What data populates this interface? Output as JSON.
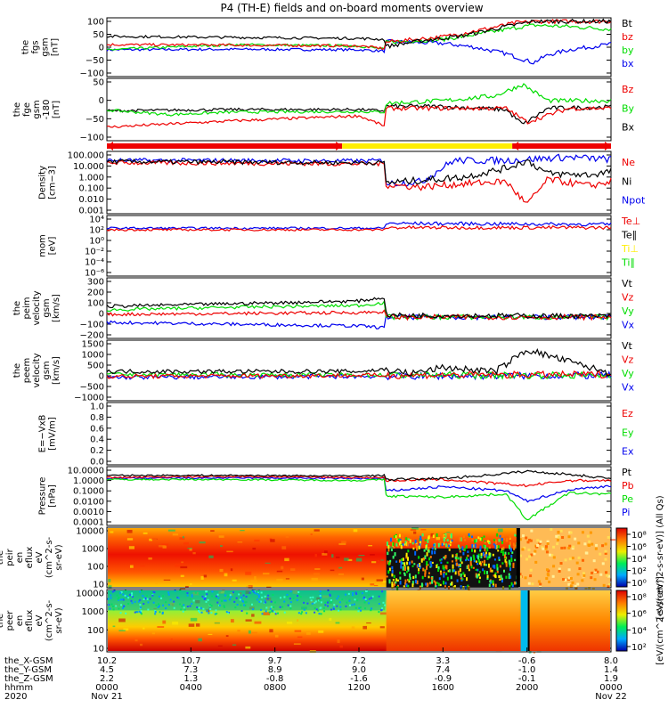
{
  "title": "P4 (TH-E) fields and on-board moments overview",
  "colors": {
    "black": "#000000",
    "red": "#ee0000",
    "green": "#00dd00",
    "blue": "#0000ee",
    "yellow": "#ffee00"
  },
  "chart_data": [
    {
      "type": "line",
      "panel": "fgs",
      "ylabel": [
        "the",
        "fgs",
        "gsm",
        "[nT]"
      ],
      "yticks": [
        "100",
        "50",
        "0",
        "−50",
        "−100"
      ],
      "ylim": [
        -100,
        100
      ],
      "legend": [
        {
          "label": "Bt",
          "color": "black"
        },
        {
          "label": "bz",
          "color": "red"
        },
        {
          "label": "by",
          "color": "green"
        },
        {
          "label": "bx",
          "color": "blue"
        }
      ],
      "series": [
        {
          "name": "Bt",
          "x": [
            0,
            6,
            12,
            13.2,
            13.3,
            15,
            17,
            19,
            20.3,
            22,
            24
          ],
          "y": [
            42,
            38,
            34,
            30,
            3,
            25,
            45,
            80,
            100,
            100,
            100
          ]
        },
        {
          "name": "bz",
          "x": [
            0,
            6,
            12,
            13.2,
            13.3,
            16,
            18,
            19.5,
            20.5,
            22,
            24
          ],
          "y": [
            10,
            8,
            5,
            -5,
            20,
            40,
            70,
            95,
            100,
            100,
            100
          ]
        },
        {
          "name": "by",
          "x": [
            0,
            6,
            12,
            13.2,
            13.3,
            16,
            18,
            19.8,
            20.4,
            22,
            24
          ],
          "y": [
            -10,
            10,
            5,
            -8,
            20,
            30,
            55,
            80,
            85,
            80,
            70
          ]
        },
        {
          "name": "bx",
          "x": [
            0,
            6,
            12,
            13.2,
            13.3,
            16,
            17.5,
            19,
            20.3,
            21,
            22,
            24
          ],
          "y": [
            -10,
            -8,
            -10,
            -15,
            22,
            15,
            0,
            -25,
            -60,
            -30,
            -10,
            12
          ]
        }
      ]
    },
    {
      "type": "line",
      "panel": "fge",
      "ylabel": [
        "the",
        "fge",
        "gsm",
        "-180",
        "[nT]"
      ],
      "yticks": [
        "50",
        "0",
        "−50",
        "−100"
      ],
      "ylim": [
        -120,
        100
      ],
      "legend": [
        {
          "label": "Bz",
          "color": "red"
        },
        {
          "label": "By",
          "color": "green"
        },
        {
          "label": "Bx",
          "color": "black"
        }
      ],
      "series": [
        {
          "name": "Bz",
          "x": [
            0,
            6,
            12,
            13.2,
            13.3,
            16,
            19,
            20,
            22,
            24
          ],
          "y": [
            -80,
            -55,
            -35,
            -75,
            -5,
            -5,
            -5,
            -60,
            -5,
            -5
          ]
        },
        {
          "name": "By",
          "x": [
            0,
            3,
            6,
            12,
            13.2,
            13.3,
            16,
            18.5,
            19.8,
            21,
            24
          ],
          "y": [
            -12,
            -30,
            -20,
            -18,
            -20,
            15,
            25,
            45,
            90,
            25,
            25
          ]
        },
        {
          "name": "Bx",
          "x": [
            0,
            6,
            12,
            13.2,
            13.3,
            16,
            19,
            19.8,
            21,
            24
          ],
          "y": [
            -15,
            -10,
            -10,
            -15,
            3,
            2,
            -10,
            -70,
            -5,
            0
          ]
        }
      ]
    },
    {
      "type": "line",
      "panel": "density",
      "ylabel": [
        "Density",
        "[cm−3]"
      ],
      "yticks": [
        "100.000",
        "10.000",
        "1.000",
        "0.100",
        "0.010",
        "0.001"
      ],
      "ylim_log10": [
        -3,
        2
      ],
      "legend": [
        {
          "label": "Ne",
          "color": "red"
        },
        {
          "label": "Ni",
          "color": "black"
        },
        {
          "label": "Npot",
          "color": "blue"
        }
      ],
      "series": [
        {
          "name": "Ni",
          "x": [
            0,
            6,
            12,
            13.2,
            13.3,
            15,
            17,
            19,
            20,
            21,
            23,
            24
          ],
          "y": [
            1.4,
            1.35,
            1.3,
            1.3,
            -0.5,
            -0.3,
            0.0,
            0.8,
            1.5,
            0.3,
            0.2,
            0.5
          ]
        },
        {
          "name": "Ne",
          "x": [
            0,
            6,
            12,
            13.2,
            13.3,
            15,
            17,
            19,
            20,
            21,
            23,
            24
          ],
          "y": [
            1.3,
            1.25,
            1.2,
            1.2,
            -0.7,
            -0.9,
            -0.6,
            -0.4,
            -2.5,
            -0.2,
            -0.8,
            -0.4
          ]
        },
        {
          "name": "Npot",
          "x": [
            0,
            6,
            12,
            13.2,
            13.3,
            15,
            16.5,
            19,
            22,
            24
          ],
          "y": [
            1.5,
            1.5,
            1.45,
            1.5,
            -0.6,
            -0.4,
            1.5,
            1.5,
            1.8,
            1.6
          ]
        }
      ]
    },
    {
      "type": "line",
      "panel": "mom",
      "ylabel": [
        "mom",
        "[eV]"
      ],
      "yticks": [
        "10⁴",
        "10²",
        "10⁰",
        "10⁻²",
        "10⁻⁴",
        "10⁻⁶"
      ],
      "ylim_log10": [
        -6,
        4
      ],
      "legend": [
        {
          "label": "Te⊥",
          "color": "red"
        },
        {
          "label": "Te∥",
          "color": "black"
        },
        {
          "label": "Ti⊥",
          "color": "yellow"
        },
        {
          "label": "Ti∥",
          "color": "green"
        }
      ],
      "series": [
        {
          "name": "Te",
          "x": [
            0,
            13.2,
            13.3,
            24
          ],
          "y": [
            2.0,
            2.0,
            2.4,
            2.4
          ]
        },
        {
          "name": "Ti",
          "x": [
            0,
            13.2,
            13.3,
            24
          ],
          "y": [
            2.3,
            2.3,
            3.2,
            3.0
          ]
        }
      ]
    },
    {
      "type": "line",
      "panel": "peim-velocity",
      "ylabel": [
        "the",
        "peim",
        "velocity",
        "gsm",
        "[km/s]"
      ],
      "yticks": [
        "300",
        "200",
        "100",
        "0",
        "−100",
        "−200"
      ],
      "ylim": [
        -200,
        400
      ],
      "legend": [
        {
          "label": "Vt",
          "color": "black"
        },
        {
          "label": "Vz",
          "color": "red"
        },
        {
          "label": "Vy",
          "color": "green"
        },
        {
          "label": "Vx",
          "color": "blue"
        }
      ],
      "series": [
        {
          "name": "Vt",
          "x": [
            0,
            6,
            12,
            13.2,
            13.3,
            24
          ],
          "y": [
            120,
            150,
            180,
            220,
            20,
            10
          ]
        },
        {
          "name": "Vz",
          "x": [
            0,
            6,
            12,
            13.2,
            13.3,
            24
          ],
          "y": [
            30,
            40,
            50,
            60,
            0,
            0
          ]
        },
        {
          "name": "Vy",
          "x": [
            0,
            6,
            12,
            13.2,
            13.3,
            24
          ],
          "y": [
            80,
            110,
            130,
            160,
            0,
            0
          ]
        },
        {
          "name": "Vx",
          "x": [
            0,
            6,
            12,
            13.2,
            13.3,
            24
          ],
          "y": [
            -60,
            -80,
            -100,
            -120,
            0,
            0
          ]
        }
      ]
    },
    {
      "type": "line",
      "panel": "peem-velocity",
      "ylabel": [
        "the",
        "peem",
        "velocity",
        "gsm",
        "[km/s]"
      ],
      "yticks": [
        "1500",
        "1000",
        "500",
        "0",
        "−500",
        "−1000"
      ],
      "ylim": [
        -1100,
        1600
      ],
      "legend": [
        {
          "label": "Vt",
          "color": "black"
        },
        {
          "label": "Vz",
          "color": "red"
        },
        {
          "label": "Vy",
          "color": "green"
        },
        {
          "label": "Vx",
          "color": "blue"
        }
      ],
      "series": [
        {
          "name": "Vt",
          "x": [
            0,
            12,
            13.2,
            14.5,
            16,
            18.5,
            20,
            24
          ],
          "y": [
            200,
            200,
            300,
            100,
            400,
            200,
            1300,
            100
          ]
        },
        {
          "name": "Vz",
          "x": [
            0,
            24
          ],
          "y": [
            -50,
            50
          ]
        },
        {
          "name": "Vy",
          "x": [
            0,
            24
          ],
          "y": [
            50,
            0
          ]
        },
        {
          "name": "Vx",
          "x": [
            0,
            24
          ],
          "y": [
            -100,
            0
          ]
        }
      ]
    },
    {
      "type": "line",
      "panel": "e-field",
      "ylabel": [
        "E=−VxB",
        "[mV/m]"
      ],
      "yticks": [
        "1.0",
        "0.8",
        "0.6",
        "0.4",
        "0.2",
        "0.0"
      ],
      "ylim": [
        0,
        1
      ],
      "legend": [
        {
          "label": "Ez",
          "color": "red"
        },
        {
          "label": "Ey",
          "color": "green"
        },
        {
          "label": "Ex",
          "color": "blue"
        }
      ],
      "series": []
    },
    {
      "type": "line",
      "panel": "pressure",
      "ylabel": [
        "Pressure",
        "[nPa]"
      ],
      "yticks": [
        "10.0000",
        "1.0000",
        "0.1000",
        "0.0100",
        "0.0010",
        "0.0001"
      ],
      "ylim_log10": [
        -4,
        1
      ],
      "legend": [
        {
          "label": "Pt",
          "color": "black"
        },
        {
          "label": "Pb",
          "color": "red"
        },
        {
          "label": "Pe",
          "color": "green"
        },
        {
          "label": "Pi",
          "color": "blue"
        }
      ],
      "series": [
        {
          "name": "Pt",
          "x": [
            0,
            6,
            12,
            13.2,
            13.3,
            16,
            18,
            20,
            22,
            24
          ],
          "y": [
            0.5,
            0.5,
            0.45,
            0.5,
            0.1,
            0.2,
            0.5,
            0.9,
            0.6,
            0.2
          ]
        },
        {
          "name": "Pb",
          "x": [
            0,
            6,
            12,
            13.2,
            13.3,
            16,
            20,
            22,
            24
          ],
          "y": [
            0.3,
            0.4,
            0.3,
            0.3,
            0.0,
            0.1,
            -0.5,
            0.0,
            0.0
          ]
        },
        {
          "name": "Pe",
          "x": [
            0,
            6,
            12,
            13.2,
            13.3,
            16,
            19,
            20,
            22,
            24
          ],
          "y": [
            0.1,
            0.1,
            0.0,
            0.1,
            -1.5,
            -1.6,
            -1.3,
            -3.8,
            -1.2,
            -1.3
          ]
        },
        {
          "name": "Pi",
          "x": [
            0,
            6,
            12,
            13.2,
            13.3,
            16,
            19,
            20,
            22,
            24
          ],
          "y": [
            0.2,
            0.25,
            0.2,
            0.2,
            -1.0,
            -0.6,
            -1.0,
            -2.0,
            -0.9,
            -0.5
          ]
        }
      ]
    },
    {
      "type": "heatmap",
      "panel": "peir-spectrogram",
      "ylabel": [
        "the",
        "peir",
        "en",
        "eflux",
        "eV",
        "(cm^2-s-",
        "sr-eV)"
      ],
      "yticks": [
        "10000",
        "1000",
        "100",
        "10"
      ]
    },
    {
      "type": "heatmap",
      "panel": "peer-spectrogram",
      "ylabel": [
        "the",
        "peer",
        "en",
        "eflux",
        "eV",
        "(cm^2-s-",
        "sr-eV)"
      ],
      "yticks": [
        "10000",
        "1000",
        "100",
        "10"
      ]
    }
  ],
  "colorbar": {
    "label_top": "[eV/(cm^2-s-sr-eV)] (All Qs)",
    "label_bottom": "[eV/(cm^2-s-sr-eV)]",
    "ticks_top": [
      "10⁸",
      "10⁶",
      "10⁴",
      "10²",
      "10⁰"
    ],
    "ticks_bottom": [
      "10⁸",
      "10⁶",
      "10⁴",
      "10²"
    ]
  },
  "x_axis": {
    "row_labels": [
      "the_X-GSM",
      "the_Y-GSM",
      "the_Z-GSM",
      "hhmm",
      "2020"
    ],
    "ticks": [
      {
        "x": "10.2",
        "y": "4.5",
        "z": "2.2",
        "hhmm": "0000",
        "date": "Nov 21"
      },
      {
        "x": "10.7",
        "y": "7.3",
        "z": "1.3",
        "hhmm": "0400",
        "date": ""
      },
      {
        "x": "9.7",
        "y": "8.9",
        "z": "-0.8",
        "hhmm": "0800",
        "date": ""
      },
      {
        "x": "7.2",
        "y": "9.0",
        "z": "-1.6",
        "hhmm": "1200",
        "date": ""
      },
      {
        "x": "3.3",
        "y": "7.4",
        "z": "-0.9",
        "hhmm": "1600",
        "date": ""
      },
      {
        "x": "-0.6",
        "y": "-1.0",
        "z": "-0.1",
        "hhmm": "2000",
        "date": ""
      },
      {
        "x": "8.0",
        "y": "1.4",
        "z": "1.9",
        "hhmm": "0000",
        "date": "Nov 22"
      }
    ]
  }
}
